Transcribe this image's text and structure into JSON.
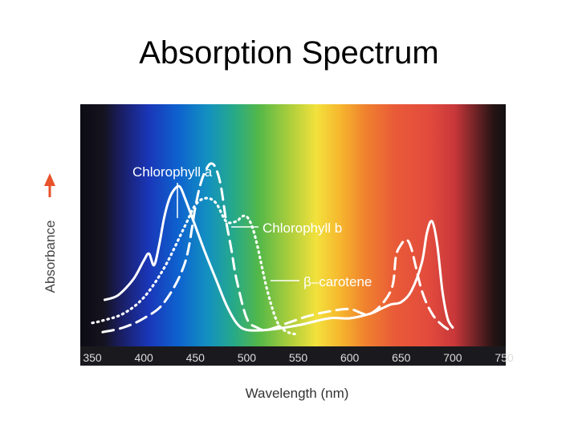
{
  "slide": {
    "title": "Absorption Spectrum"
  },
  "colors": {
    "chlorophyll_a": "#ffffff",
    "chlorophyll_b": "#ffffff",
    "beta_carotene": "#ffffff",
    "absorbance_arrow": "#e8532b"
  },
  "chart_data": {
    "type": "line",
    "title": "",
    "xlabel": "Wavelength (nm)",
    "ylabel": "Absorbance",
    "xlim": [
      350,
      750
    ],
    "ylim": [
      0,
      1
    ],
    "x_ticks": [
      "350",
      "400",
      "450",
      "500",
      "550",
      "600",
      "650",
      "700",
      "750"
    ],
    "y_ticks": [],
    "grid": false,
    "legend": "inline-labels",
    "background": "visible light spectrum gradient",
    "series": [
      {
        "name": "Chlorophyll a",
        "label": "Chlorophyll a",
        "style": "solid",
        "x": [
          362,
          375,
          390,
          400,
          405,
          410,
          415,
          420,
          425,
          430,
          435,
          440,
          450,
          460,
          470,
          480,
          490,
          500,
          520,
          550,
          580,
          600,
          620,
          630,
          640,
          650,
          660,
          670,
          675,
          680,
          685,
          690,
          695,
          700
        ],
        "y": [
          0.16,
          0.18,
          0.25,
          0.33,
          0.36,
          0.31,
          0.4,
          0.52,
          0.6,
          0.64,
          0.65,
          0.6,
          0.48,
          0.36,
          0.25,
          0.14,
          0.06,
          0.03,
          0.03,
          0.05,
          0.08,
          0.08,
          0.1,
          0.12,
          0.14,
          0.15,
          0.2,
          0.32,
          0.45,
          0.5,
          0.4,
          0.2,
          0.08,
          0.04
        ]
      },
      {
        "name": "Chlorophyll b",
        "label": "Chlorophyll b",
        "style": "dashed",
        "x": [
          360,
          380,
          400,
          420,
          440,
          450,
          455,
          460,
          465,
          470,
          475,
          480,
          485,
          490,
          500,
          510,
          520,
          540,
          560,
          580,
          600,
          620,
          640,
          645,
          650,
          655,
          660,
          670,
          680,
          690,
          700
        ],
        "y": [
          0.02,
          0.04,
          0.08,
          0.15,
          0.32,
          0.56,
          0.66,
          0.72,
          0.75,
          0.73,
          0.65,
          0.5,
          0.38,
          0.25,
          0.08,
          0.04,
          0.03,
          0.06,
          0.09,
          0.11,
          0.12,
          0.1,
          0.2,
          0.35,
          0.4,
          0.42,
          0.38,
          0.2,
          0.1,
          0.05,
          0.02
        ]
      },
      {
        "name": "β–carotene",
        "label": "β–carotene",
        "style": "dotted",
        "x": [
          350,
          360,
          380,
          400,
          420,
          440,
          450,
          460,
          470,
          480,
          490,
          495,
          500,
          505,
          510,
          520,
          530,
          540,
          550
        ],
        "y": [
          0.06,
          0.07,
          0.1,
          0.17,
          0.3,
          0.48,
          0.57,
          0.6,
          0.58,
          0.5,
          0.5,
          0.52,
          0.52,
          0.48,
          0.4,
          0.2,
          0.06,
          0.02,
          0.01
        ]
      }
    ]
  }
}
